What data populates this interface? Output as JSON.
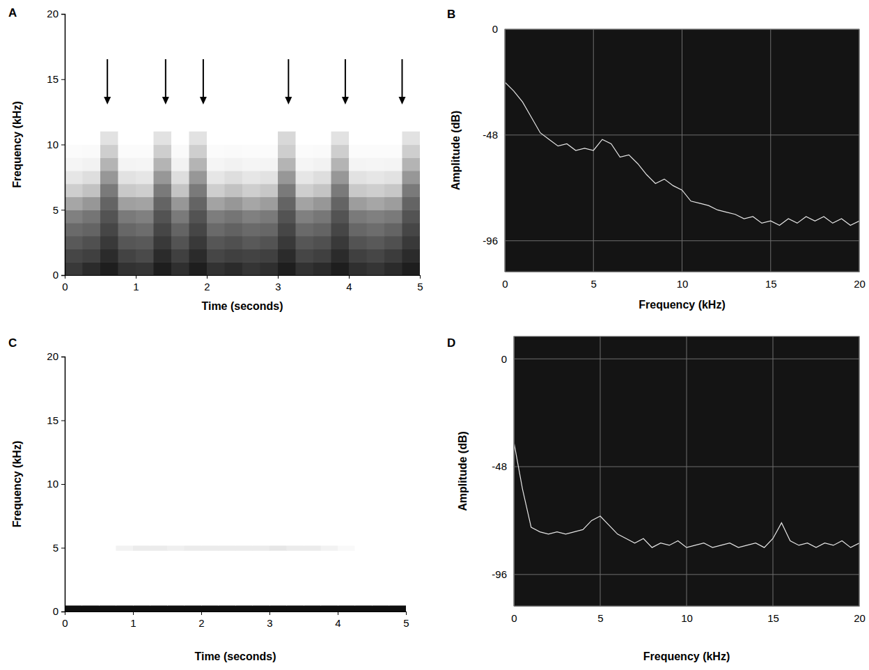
{
  "chart_data": [
    {
      "type": "heatmap",
      "panel": "A",
      "x_label": "Time (seconds)",
      "y_label": "Frequency (kHz)",
      "xlim": [
        0,
        5
      ],
      "ylim": [
        0,
        20
      ],
      "xticks": [
        0,
        1,
        2,
        3,
        4,
        5
      ],
      "yticks": [
        0,
        5,
        10,
        15,
        20
      ],
      "x_bins": [
        0,
        0.25,
        0.5,
        0.75,
        1,
        1.25,
        1.5,
        1.75,
        2,
        2.25,
        2.5,
        2.75,
        3,
        3.25,
        3.5,
        3.75,
        4,
        4.25,
        4.5,
        4.75,
        5
      ],
      "y_bins": [
        0,
        1,
        2,
        3,
        4,
        5,
        6,
        7,
        8,
        9,
        10,
        11
      ],
      "cells": [
        [
          0.82,
          0.86,
          0.9,
          0.84,
          0.83,
          0.9,
          0.85,
          0.9,
          0.84,
          0.86,
          0.83,
          0.85,
          0.9,
          0.84,
          0.86,
          0.9,
          0.85,
          0.83,
          0.86,
          0.9
        ],
        [
          0.78,
          0.8,
          0.86,
          0.79,
          0.77,
          0.86,
          0.8,
          0.86,
          0.78,
          0.8,
          0.79,
          0.8,
          0.86,
          0.78,
          0.8,
          0.86,
          0.8,
          0.78,
          0.81,
          0.86
        ],
        [
          0.72,
          0.75,
          0.82,
          0.73,
          0.72,
          0.82,
          0.74,
          0.82,
          0.73,
          0.75,
          0.72,
          0.74,
          0.82,
          0.73,
          0.75,
          0.82,
          0.74,
          0.72,
          0.75,
          0.82
        ],
        [
          0.66,
          0.68,
          0.78,
          0.67,
          0.65,
          0.78,
          0.68,
          0.78,
          0.66,
          0.69,
          0.66,
          0.67,
          0.78,
          0.66,
          0.68,
          0.78,
          0.67,
          0.65,
          0.68,
          0.78
        ],
        [
          0.58,
          0.62,
          0.74,
          0.6,
          0.58,
          0.74,
          0.6,
          0.74,
          0.59,
          0.62,
          0.58,
          0.6,
          0.74,
          0.58,
          0.61,
          0.74,
          0.6,
          0.58,
          0.6,
          0.74
        ],
        [
          0.45,
          0.5,
          0.68,
          0.47,
          0.46,
          0.68,
          0.5,
          0.68,
          0.46,
          0.5,
          0.45,
          0.48,
          0.68,
          0.46,
          0.5,
          0.68,
          0.48,
          0.45,
          0.48,
          0.68
        ],
        [
          0.3,
          0.35,
          0.6,
          0.32,
          0.3,
          0.6,
          0.34,
          0.6,
          0.3,
          0.35,
          0.3,
          0.33,
          0.6,
          0.3,
          0.34,
          0.6,
          0.32,
          0.3,
          0.33,
          0.6
        ],
        [
          0.18,
          0.22,
          0.5,
          0.2,
          0.18,
          0.5,
          0.22,
          0.5,
          0.18,
          0.22,
          0.18,
          0.2,
          0.5,
          0.18,
          0.22,
          0.5,
          0.2,
          0.18,
          0.2,
          0.5
        ],
        [
          0.08,
          0.1,
          0.4,
          0.09,
          0.08,
          0.4,
          0.1,
          0.4,
          0.08,
          0.1,
          0.08,
          0.09,
          0.4,
          0.08,
          0.1,
          0.4,
          0.09,
          0.08,
          0.09,
          0.4
        ],
        [
          0.03,
          0.04,
          0.3,
          0.03,
          0.03,
          0.3,
          0.04,
          0.3,
          0.03,
          0.04,
          0.03,
          0.03,
          0.3,
          0.03,
          0.04,
          0.3,
          0.03,
          0.03,
          0.03,
          0.3
        ],
        [
          0,
          0,
          0.2,
          0,
          0,
          0.2,
          0,
          0.2,
          0,
          0,
          0,
          0,
          0.25,
          0,
          0,
          0.2,
          0,
          0,
          0,
          0.2
        ]
      ],
      "arrows": [
        0.6,
        1.42,
        1.95,
        3.15,
        3.95,
        4.75
      ]
    },
    {
      "type": "line",
      "panel": "B",
      "x_label": "Frequency (kHz)",
      "y_label": "Amplitude (dB)",
      "xlim": [
        0,
        20
      ],
      "ylim": [
        -110,
        0
      ],
      "xticks": [
        0,
        5,
        10,
        15,
        20
      ],
      "yticks": [
        0,
        -48,
        -96
      ],
      "grid": true,
      "color": "#e6e6e6",
      "x": [
        0,
        0.5,
        1,
        1.5,
        2,
        2.5,
        3,
        3.5,
        4,
        4.5,
        5,
        5.5,
        6,
        6.5,
        7,
        7.5,
        8,
        8.5,
        9,
        9.5,
        10,
        10.5,
        11,
        11.5,
        12,
        12.5,
        13,
        13.5,
        14,
        14.5,
        15,
        15.5,
        16,
        16.5,
        17,
        17.5,
        18,
        18.5,
        19,
        19.5,
        20
      ],
      "values": [
        -24,
        -28,
        -33,
        -40,
        -47,
        -50,
        -53,
        -52,
        -55,
        -54,
        -55,
        -50,
        -52,
        -58,
        -57,
        -61,
        -66,
        -70,
        -68,
        -71,
        -73,
        -78,
        -79,
        -80,
        -82,
        -83,
        -84,
        -86,
        -85,
        -88,
        -87,
        -89,
        -86,
        -88,
        -85,
        -87,
        -85,
        -88,
        -86,
        -89,
        -87
      ]
    },
    {
      "type": "heatmap",
      "panel": "C",
      "x_label": "Time (seconds)",
      "y_label": "Frequency (kHz)",
      "xlim": [
        0,
        5
      ],
      "ylim": [
        0,
        20
      ],
      "xticks": [
        0,
        1,
        2,
        3,
        4,
        5
      ],
      "yticks": [
        0,
        5,
        10,
        15,
        20
      ],
      "x_bins": [
        0,
        0.25,
        0.5,
        0.75,
        1,
        1.25,
        1.5,
        1.75,
        2,
        2.25,
        2.5,
        2.75,
        3,
        3.25,
        3.5,
        3.75,
        4,
        4.25,
        4.5,
        4.75,
        5
      ],
      "y_bins": [
        0,
        0.5,
        4.8,
        5.2,
        20
      ],
      "cells": [
        [
          0.95,
          0.95,
          0.95,
          0.95,
          0.95,
          0.95,
          0.95,
          0.95,
          0.95,
          0.95,
          0.95,
          0.95,
          0.95,
          0.95,
          0.95,
          0.95,
          0.95,
          0.95,
          0.95,
          0.95
        ],
        [
          0,
          0,
          0,
          0,
          0,
          0,
          0,
          0,
          0,
          0,
          0,
          0,
          0,
          0,
          0,
          0,
          0,
          0,
          0,
          0
        ],
        [
          0,
          0,
          0,
          0.1,
          0.15,
          0.15,
          0.12,
          0.15,
          0.15,
          0.15,
          0.15,
          0.15,
          0.18,
          0.15,
          0.15,
          0.1,
          0.05,
          0,
          0,
          0
        ],
        [
          0,
          0,
          0,
          0,
          0,
          0,
          0,
          0,
          0,
          0,
          0,
          0,
          0,
          0,
          0,
          0,
          0,
          0,
          0,
          0
        ]
      ]
    },
    {
      "type": "line",
      "panel": "D",
      "x_label": "Frequency (kHz)",
      "y_label": "Amplitude (dB)",
      "xlim": [
        0,
        20
      ],
      "ylim": [
        -110,
        10
      ],
      "xticks": [
        0,
        5,
        10,
        15,
        20
      ],
      "yticks": [
        0,
        -48,
        -96
      ],
      "grid": true,
      "color": "#e6e6e6",
      "x": [
        0,
        0.5,
        1,
        1.5,
        2,
        2.5,
        3,
        3.5,
        4,
        4.5,
        5,
        5.5,
        6,
        6.5,
        7,
        7.5,
        8,
        8.5,
        9,
        9.5,
        10,
        10.5,
        11,
        11.5,
        12,
        12.5,
        13,
        13.5,
        14,
        14.5,
        15,
        15.5,
        16,
        16.5,
        17,
        17.5,
        18,
        18.5,
        19,
        19.5,
        20
      ],
      "values": [
        -37,
        -58,
        -75,
        -77,
        -78,
        -77,
        -78,
        -77,
        -76,
        -72,
        -70,
        -74,
        -78,
        -80,
        -82,
        -80,
        -84,
        -82,
        -83,
        -81,
        -84,
        -83,
        -82,
        -84,
        -83,
        -82,
        -84,
        -83,
        -82,
        -84,
        -80,
        -73,
        -81,
        -83,
        -82,
        -84,
        -82,
        -83,
        -81,
        -84,
        -82
      ]
    }
  ]
}
